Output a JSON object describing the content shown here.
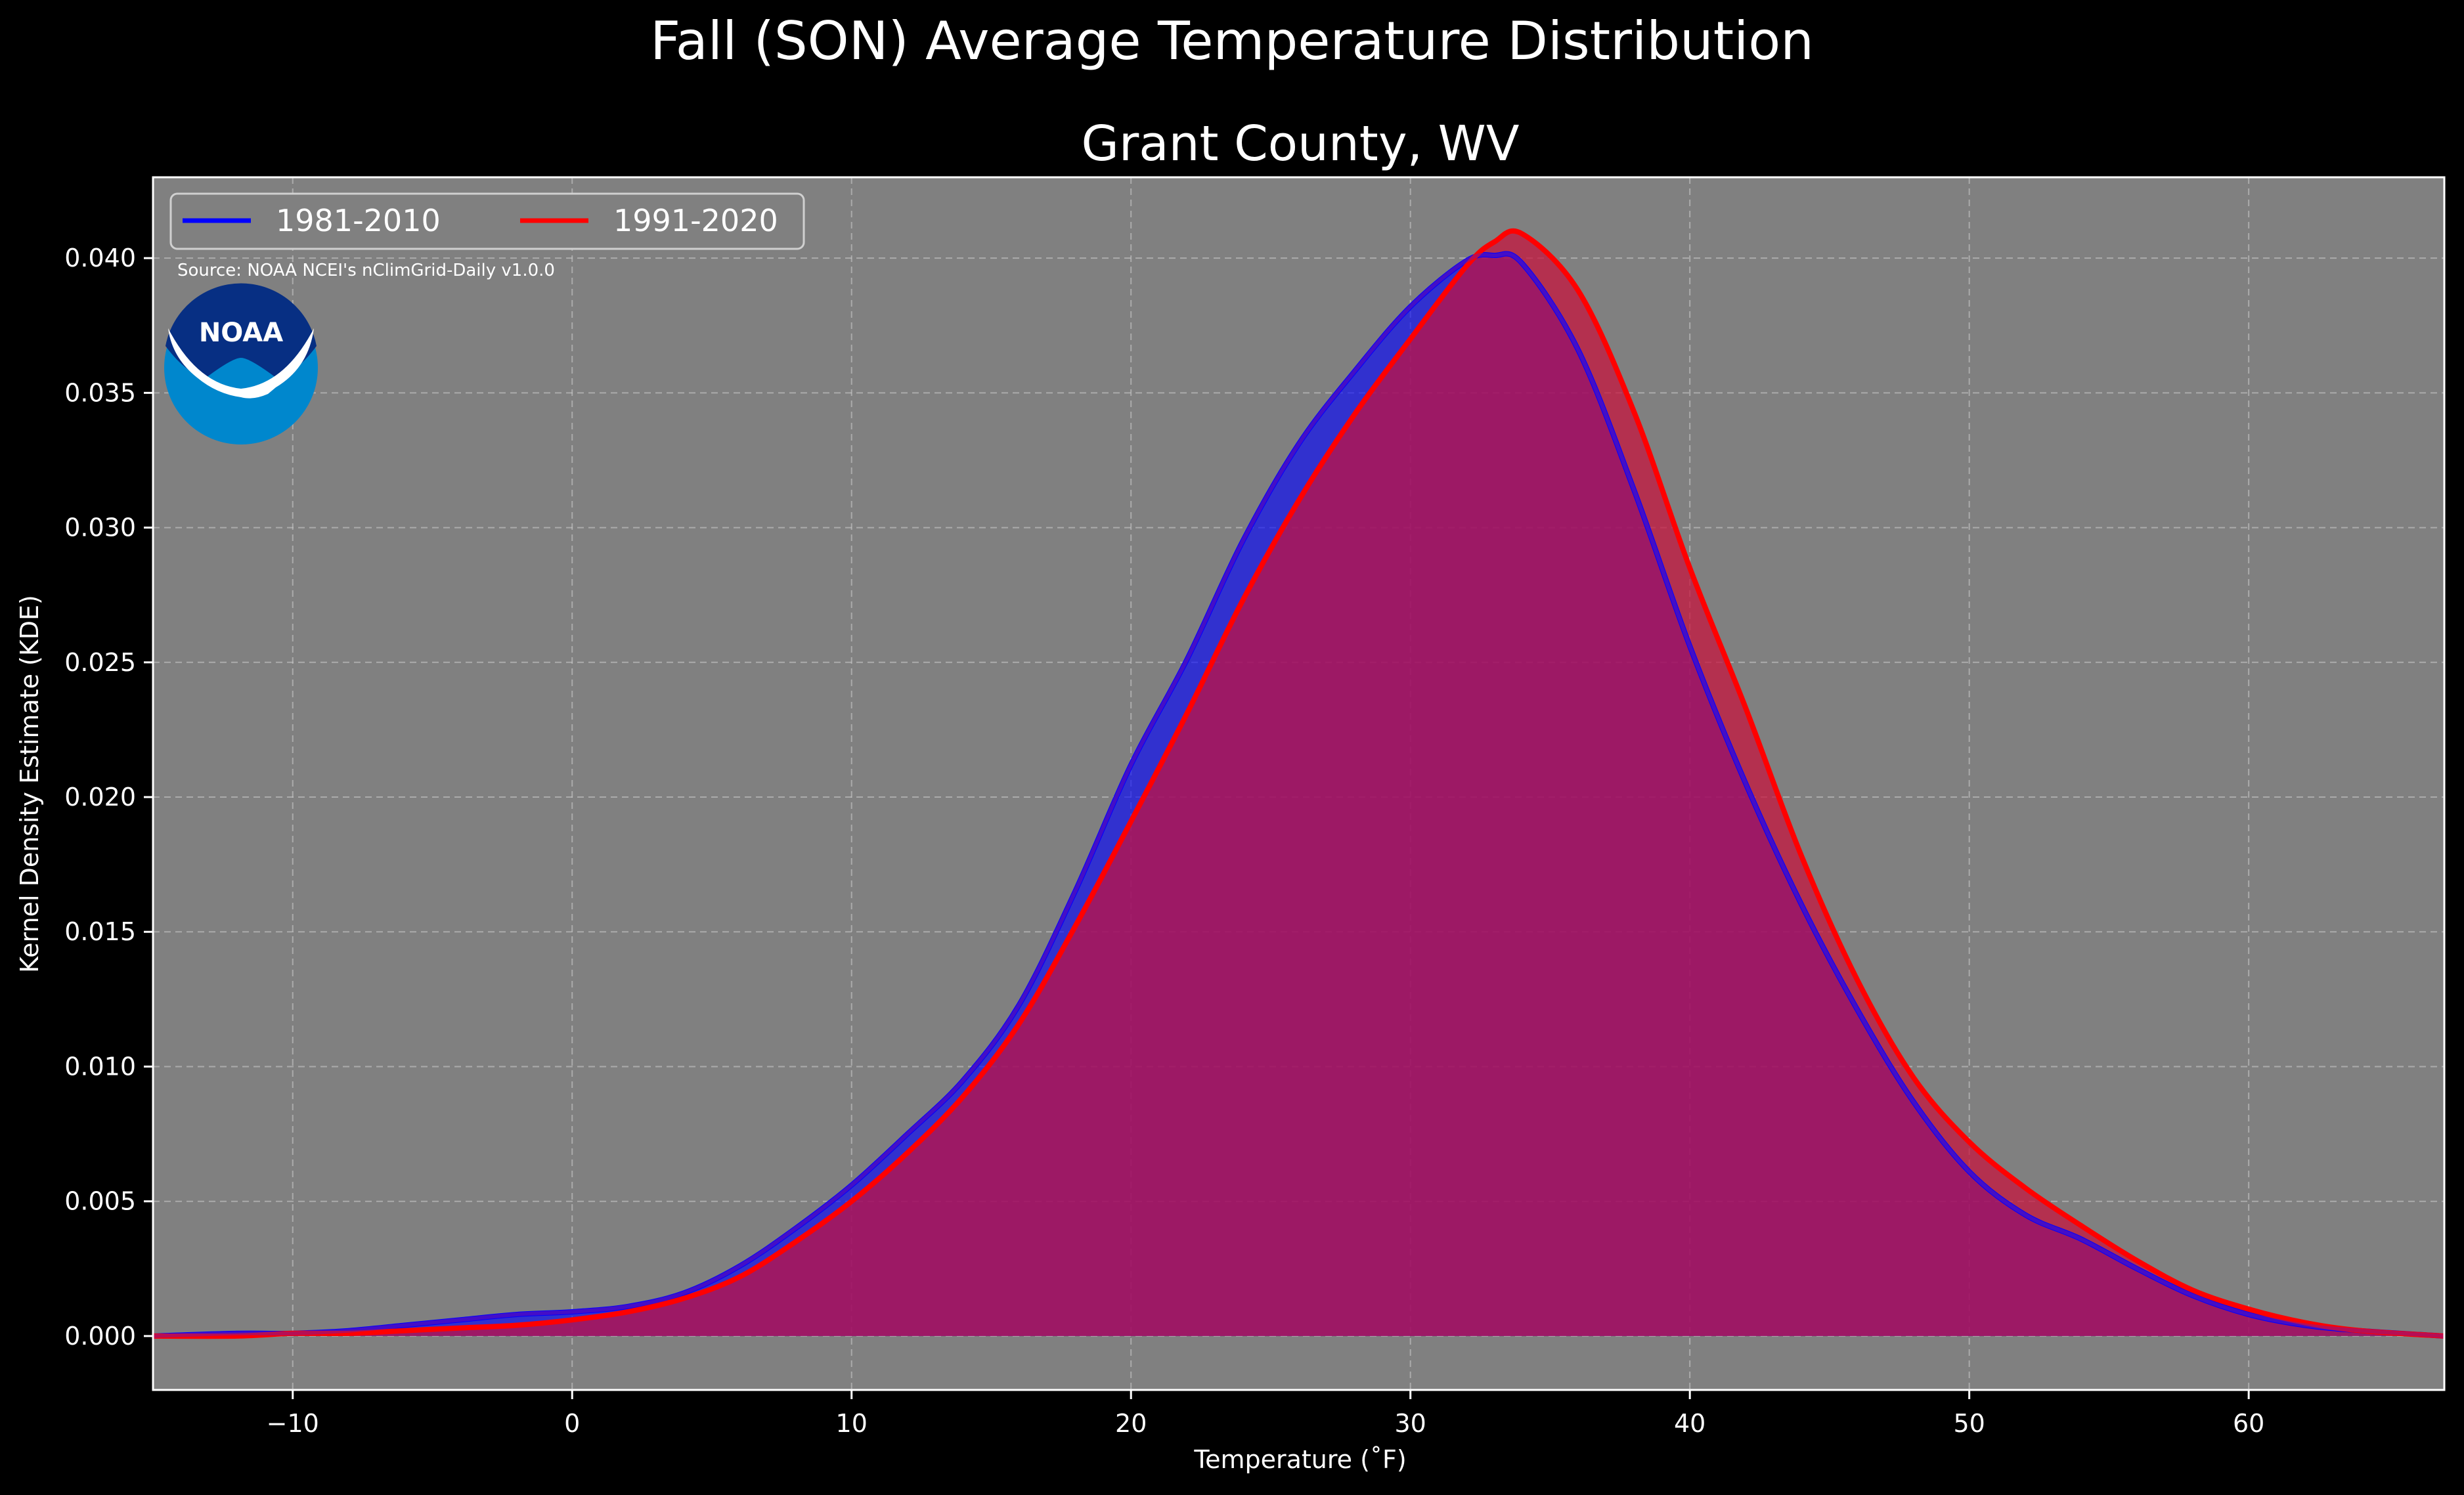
{
  "chart_data": {
    "type": "area",
    "suptitle": "Fall (SON) Average Temperature Distribution",
    "title": "Grant County, WV",
    "xlabel": "Temperature (˚F)",
    "ylabel": "Kernel Density Estimate (KDE)",
    "source": "Source: NOAA NCEI's nClimGrid-Daily v1.0.0",
    "logo_text": "NOAA",
    "xlim": [
      -15,
      67
    ],
    "ylim": [
      -0.002,
      0.043
    ],
    "xticks": [
      -10,
      0,
      10,
      20,
      30,
      40,
      50,
      60
    ],
    "xtick_labels": [
      "−10",
      "0",
      "10",
      "20",
      "30",
      "40",
      "50",
      "60"
    ],
    "yticks": [
      0.0,
      0.005,
      0.01,
      0.015,
      0.02,
      0.025,
      0.03,
      0.035,
      0.04
    ],
    "ytick_labels": [
      "0.000",
      "0.005",
      "0.010",
      "0.015",
      "0.020",
      "0.025",
      "0.030",
      "0.035",
      "0.040"
    ],
    "grid": true,
    "legend_position": "top-left",
    "background_color": "#808080",
    "x": [
      -15,
      -12,
      -10,
      -8,
      -6,
      -4,
      -2,
      0,
      2,
      4,
      6,
      8,
      10,
      12,
      14,
      16,
      18,
      20,
      22,
      24,
      26,
      28,
      30,
      32,
      33,
      34,
      36,
      38,
      40,
      42,
      44,
      46,
      48,
      50,
      52,
      54,
      56,
      58,
      60,
      62,
      64,
      67
    ],
    "series": [
      {
        "name": "1981-2010",
        "color": "#0000ff",
        "fill": "#0000ff",
        "values": [
          0.0,
          0.0001,
          0.0001,
          0.0002,
          0.0004,
          0.0006,
          0.0008,
          0.0009,
          0.0011,
          0.0016,
          0.0026,
          0.004,
          0.0056,
          0.0075,
          0.0095,
          0.0123,
          0.0165,
          0.0212,
          0.0251,
          0.0295,
          0.0331,
          0.0358,
          0.0382,
          0.0399,
          0.0401,
          0.0398,
          0.0366,
          0.0314,
          0.0256,
          0.0205,
          0.016,
          0.0121,
          0.0087,
          0.0061,
          0.0045,
          0.0036,
          0.0025,
          0.0015,
          0.0008,
          0.0004,
          0.0002,
          0.0
        ]
      },
      {
        "name": "1991-2020",
        "color": "#ff0000",
        "fill": "#c8103c",
        "values": [
          0.0,
          0.0,
          0.0001,
          0.0001,
          0.0002,
          0.0003,
          0.0004,
          0.0006,
          0.0009,
          0.0014,
          0.0022,
          0.0035,
          0.005,
          0.0068,
          0.0089,
          0.0116,
          0.0152,
          0.0191,
          0.0231,
          0.0273,
          0.031,
          0.0342,
          0.037,
          0.0397,
          0.0406,
          0.0409,
          0.0388,
          0.0343,
          0.0285,
          0.0233,
          0.0178,
          0.0132,
          0.0096,
          0.0072,
          0.0055,
          0.0041,
          0.0028,
          0.0017,
          0.001,
          0.0005,
          0.0002,
          0.0
        ]
      }
    ]
  }
}
